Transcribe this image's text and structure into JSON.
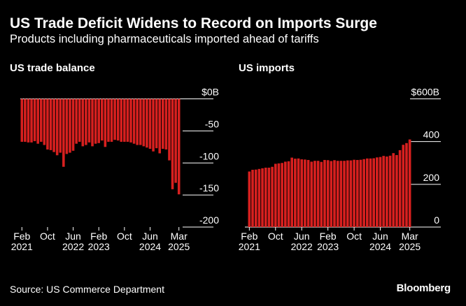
{
  "header": {
    "title": "US Trade Deficit Widens to Record on Imports Surge",
    "subtitle": "Products including pharmaceuticals imported ahead of tariffs"
  },
  "footer": {
    "source": "Source: US Commerce Department",
    "brand": "Bloomberg"
  },
  "colors": {
    "bar": "#d7201f",
    "background": "#000000",
    "text": "#ffffff",
    "grid": "#ffffff"
  },
  "chart_data": [
    {
      "type": "bar",
      "title": "US trade balance",
      "unit": "$B",
      "categories": [
        "2021-02",
        "2021-03",
        "2021-04",
        "2021-05",
        "2021-06",
        "2021-07",
        "2021-08",
        "2021-09",
        "2021-10",
        "2021-11",
        "2021-12",
        "2022-01",
        "2022-02",
        "2022-03",
        "2022-04",
        "2022-05",
        "2022-06",
        "2022-07",
        "2022-08",
        "2022-09",
        "2022-10",
        "2022-11",
        "2022-12",
        "2023-01",
        "2023-02",
        "2023-03",
        "2023-04",
        "2023-05",
        "2023-06",
        "2023-07",
        "2023-08",
        "2023-09",
        "2023-10",
        "2023-11",
        "2023-12",
        "2024-01",
        "2024-02",
        "2024-03",
        "2024-04",
        "2024-05",
        "2024-06",
        "2024-07",
        "2024-08",
        "2024-09",
        "2024-10",
        "2024-11",
        "2024-12",
        "2025-01",
        "2025-02",
        "2025-03"
      ],
      "values": [
        -67,
        -67,
        -68,
        -68,
        -66,
        -70,
        -67,
        -72,
        -79,
        -80,
        -83,
        -88,
        -84,
        -106,
        -86,
        -84,
        -81,
        -70,
        -67,
        -74,
        -72,
        -68,
        -74,
        -70,
        -69,
        -65,
        -75,
        -67,
        -67,
        -64,
        -65,
        -67,
        -67,
        -67,
        -68,
        -70,
        -72,
        -72,
        -74,
        -76,
        -78,
        -82,
        -77,
        -85,
        -78,
        -79,
        -96,
        -141,
        -131,
        -149
      ],
      "ylim": [
        -200,
        0
      ],
      "yticks": [
        {
          "value": 0,
          "label": "$0B"
        },
        {
          "value": -50,
          "label": "-50"
        },
        {
          "value": -100,
          "label": "-100"
        },
        {
          "value": -150,
          "label": "-150"
        },
        {
          "value": -200,
          "label": "-200"
        }
      ],
      "xticks": [
        {
          "index": 0,
          "month": "Feb",
          "year": "2021"
        },
        {
          "index": 8,
          "month": "Oct",
          "year": ""
        },
        {
          "index": 16,
          "month": "Jun",
          "year": "2022"
        },
        {
          "index": 24,
          "month": "Feb",
          "year": "2023"
        },
        {
          "index": 32,
          "month": "Oct",
          "year": ""
        },
        {
          "index": 40,
          "month": "Jun",
          "year": "2024"
        },
        {
          "index": 49,
          "month": "Mar",
          "year": "2025"
        }
      ]
    },
    {
      "type": "bar",
      "title": "US imports",
      "unit": "$B",
      "categories": [
        "2021-02",
        "2021-03",
        "2021-04",
        "2021-05",
        "2021-06",
        "2021-07",
        "2021-08",
        "2021-09",
        "2021-10",
        "2021-11",
        "2021-12",
        "2022-01",
        "2022-02",
        "2022-03",
        "2022-04",
        "2022-05",
        "2022-06",
        "2022-07",
        "2022-08",
        "2022-09",
        "2022-10",
        "2022-11",
        "2022-12",
        "2023-01",
        "2023-02",
        "2023-03",
        "2023-04",
        "2023-05",
        "2023-06",
        "2023-07",
        "2023-08",
        "2023-09",
        "2023-10",
        "2023-11",
        "2023-12",
        "2024-01",
        "2024-02",
        "2024-03",
        "2024-04",
        "2024-05",
        "2024-06",
        "2024-07",
        "2024-08",
        "2024-09",
        "2024-10",
        "2024-11",
        "2024-12",
        "2025-01",
        "2025-02",
        "2025-03"
      ],
      "values": [
        260,
        268,
        269,
        272,
        275,
        278,
        278,
        282,
        296,
        298,
        300,
        306,
        308,
        325,
        320,
        321,
        317,
        316,
        314,
        306,
        310,
        310,
        305,
        314,
        313,
        309,
        313,
        310,
        310,
        310,
        312,
        312,
        315,
        314,
        315,
        318,
        321,
        321,
        322,
        326,
        328,
        333,
        330,
        334,
        346,
        337,
        360,
        385,
        393,
        410
      ],
      "ylim": [
        0,
        600
      ],
      "yticks": [
        {
          "value": 600,
          "label": "$600B"
        },
        {
          "value": 400,
          "label": "400"
        },
        {
          "value": 200,
          "label": "200"
        },
        {
          "value": 0,
          "label": "0"
        }
      ],
      "xticks": [
        {
          "index": 0,
          "month": "Feb",
          "year": "2021"
        },
        {
          "index": 8,
          "month": "Oct",
          "year": ""
        },
        {
          "index": 16,
          "month": "Jun",
          "year": "2022"
        },
        {
          "index": 24,
          "month": "Feb",
          "year": "2023"
        },
        {
          "index": 32,
          "month": "Oct",
          "year": ""
        },
        {
          "index": 40,
          "month": "Jun",
          "year": "2024"
        },
        {
          "index": 49,
          "month": "Mar",
          "year": "2025"
        }
      ]
    }
  ]
}
